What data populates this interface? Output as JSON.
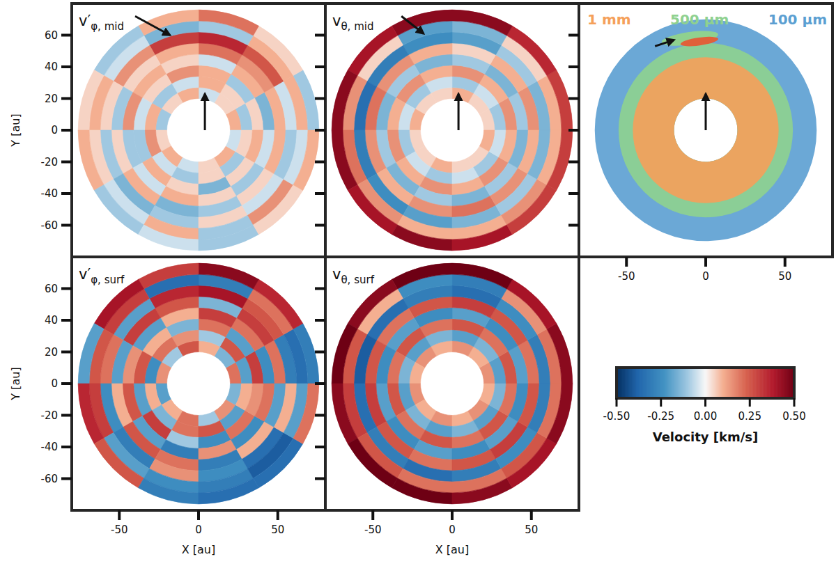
{
  "chart_data": [
    {
      "type": "polar_heatmap",
      "title": "v′",
      "title_subscript": "φ, mid",
      "xlim": [
        -80,
        80
      ],
      "ylim": [
        -80,
        80
      ],
      "xticks": [],
      "yticks": [
        -60,
        -40,
        -20,
        0,
        20,
        40,
        60
      ],
      "tick_labels": "y",
      "ylabel": "Y [au]",
      "r_edges": [
        20,
        27,
        34,
        41,
        48,
        55,
        62,
        69,
        76
      ],
      "theta_edges": [
        0,
        30,
        60,
        90,
        120,
        150,
        180,
        210,
        240,
        270,
        300,
        330,
        360
      ],
      "cells": [
        [
          0.1,
          0.05,
          -0.05,
          0.1,
          0.05,
          -0.1,
          0.05,
          0.1,
          -0.05,
          0.05,
          0.1,
          -0.05
        ],
        [
          -0.1,
          0.05,
          0.1,
          -0.05,
          -0.1,
          0.1,
          0.15,
          -0.05,
          -0.1,
          0.05,
          -0.1,
          0.05
        ],
        [
          0.05,
          -0.1,
          0.1,
          0.15,
          0.05,
          -0.05,
          -0.1,
          0.1,
          0.05,
          -0.15,
          0.05,
          0.1
        ],
        [
          -0.15,
          0.1,
          -0.05,
          0.05,
          0.1,
          0.15,
          -0.1,
          -0.05,
          0.1,
          0.05,
          -0.1,
          -0.05
        ],
        [
          0.1,
          0.15,
          0.2,
          0.1,
          0.05,
          -0.1,
          0.05,
          0.1,
          -0.15,
          -0.1,
          0.05,
          0.1
        ],
        [
          -0.05,
          0.25,
          0.35,
          0.3,
          0.15,
          0.05,
          -0.1,
          -0.15,
          -0.1,
          0.05,
          -0.05,
          -0.1
        ],
        [
          0.1,
          0.1,
          -0.1,
          -0.15,
          -0.05,
          0.1,
          0.05,
          -0.05,
          0.1,
          -0.1,
          0.15,
          -0.05
        ],
        [
          -0.1,
          0.05,
          0.2,
          0.1,
          -0.1,
          0.05,
          0.1,
          -0.1,
          -0.05,
          -0.1,
          0.05,
          0.1
        ]
      ],
      "arrows": [
        {
          "from": [
            -40,
            72
          ],
          "to": [
            -18,
            60
          ]
        },
        {
          "from": [
            4,
            0
          ],
          "to": [
            4,
            23
          ]
        }
      ]
    },
    {
      "type": "polar_heatmap",
      "title": "v",
      "title_subscript": "θ, mid",
      "xlim": [
        -80,
        80
      ],
      "ylim": [
        -80,
        80
      ],
      "xticks": [],
      "yticks": [
        -60,
        -40,
        -20,
        0,
        20,
        40,
        60
      ],
      "tick_labels": false,
      "r_edges": [
        20,
        27,
        34,
        41,
        48,
        55,
        62,
        69,
        76
      ],
      "theta_edges": [
        0,
        30,
        60,
        90,
        120,
        150,
        180,
        210,
        240,
        270,
        300,
        330,
        360
      ],
      "cells": [
        [
          0.05,
          0.05,
          0.1,
          0.05,
          0.05,
          0.1,
          0.05,
          0.05,
          0.1,
          0.05,
          0.05,
          0.1
        ],
        [
          -0.1,
          -0.05,
          -0.1,
          -0.05,
          -0.1,
          -0.05,
          -0.1,
          -0.05,
          -0.1,
          -0.05,
          -0.1,
          -0.05
        ],
        [
          0.15,
          0.1,
          0.15,
          0.1,
          0.15,
          0.1,
          0.15,
          0.1,
          0.15,
          0.1,
          0.15,
          0.1
        ],
        [
          -0.1,
          -0.15,
          -0.1,
          -0.15,
          -0.1,
          -0.15,
          -0.1,
          -0.15,
          -0.1,
          -0.15,
          -0.1,
          -0.15
        ],
        [
          0.15,
          0.1,
          0.05,
          0.1,
          0.15,
          0.2,
          0.15,
          0.1,
          0.15,
          0.2,
          0.15,
          0.1
        ],
        [
          -0.15,
          -0.1,
          -0.2,
          -0.25,
          -0.3,
          -0.35,
          -0.3,
          -0.25,
          -0.2,
          -0.15,
          -0.1,
          -0.15
        ],
        [
          0.1,
          0.05,
          -0.15,
          -0.2,
          0.05,
          0.15,
          0.2,
          0.15,
          0.1,
          0.1,
          0.15,
          0.1
        ],
        [
          0.3,
          0.35,
          0.45,
          0.45,
          0.4,
          0.45,
          0.45,
          0.4,
          0.45,
          0.4,
          0.3,
          0.3
        ]
      ],
      "arrows": [
        {
          "from": [
            -32,
            72
          ],
          "to": [
            -18,
            61
          ]
        },
        {
          "from": [
            4,
            0
          ],
          "to": [
            4,
            23
          ]
        }
      ]
    },
    {
      "type": "particles",
      "xlim": [
        -80,
        80
      ],
      "ylim": [
        -80,
        80
      ],
      "xticks": [
        -50,
        0,
        50
      ],
      "yticks": [
        -60,
        -40,
        -20,
        0,
        20,
        40,
        60
      ],
      "tick_labels": "x",
      "series": [
        {
          "name": "1 mm",
          "color": "#f5a05a",
          "r_range": [
            20,
            46
          ],
          "clump": {
            "x": -4,
            "y": 56,
            "rx": 12,
            "ry": 2.5
          }
        },
        {
          "name": "500 μm",
          "color": "#8fd18f",
          "r_range": [
            20,
            55
          ],
          "clump": {
            "x": -10,
            "y": 58,
            "rx": 18,
            "ry": 4
          }
        },
        {
          "name": "100 μm",
          "color": "#5b9fd2",
          "r_range": [
            20,
            70
          ]
        }
      ],
      "arrows": [
        {
          "from": [
            -32,
            53
          ],
          "to": [
            -20,
            57
          ]
        },
        {
          "from": [
            0,
            0
          ],
          "to": [
            0,
            23
          ]
        }
      ]
    },
    {
      "type": "polar_heatmap",
      "title": "v′",
      "title_subscript": "φ, surf",
      "xlim": [
        -80,
        80
      ],
      "ylim": [
        -80,
        80
      ],
      "xticks": [
        -50,
        0,
        50
      ],
      "yticks": [
        -60,
        -40,
        -20,
        0,
        20,
        40,
        60
      ],
      "tick_labels": true,
      "xlabel": "X [au]",
      "ylabel": "Y [au]",
      "r_edges": [
        20,
        27,
        34,
        41,
        48,
        55,
        62,
        69,
        76
      ],
      "theta_edges": [
        0,
        30,
        60,
        90,
        120,
        150,
        180,
        210,
        240,
        270,
        300,
        330,
        360
      ],
      "cells": [
        [
          0.2,
          -0.15,
          0.1,
          0.25,
          -0.1,
          0.15,
          -0.2,
          0.1,
          0.2,
          -0.1,
          0.15,
          -0.15
        ],
        [
          -0.2,
          0.25,
          -0.1,
          0.15,
          0.2,
          -0.25,
          0.1,
          -0.15,
          0.2,
          0.25,
          -0.2,
          0.1
        ],
        [
          0.3,
          -0.2,
          0.2,
          -0.15,
          0.1,
          0.25,
          -0.2,
          0.3,
          -0.1,
          -0.25,
          0.2,
          0.15
        ],
        [
          -0.25,
          0.2,
          0.3,
          0.1,
          -0.2,
          0.15,
          0.25,
          -0.2,
          -0.3,
          0.15,
          -0.25,
          0.2
        ],
        [
          0.2,
          0.3,
          -0.15,
          0.25,
          0.3,
          -0.2,
          0.1,
          0.25,
          0.2,
          -0.3,
          0.1,
          -0.2
        ],
        [
          -0.3,
          0.25,
          0.4,
          0.35,
          -0.2,
          0.2,
          -0.25,
          -0.3,
          0.15,
          -0.25,
          -0.35,
          0.1
        ],
        [
          -0.35,
          0.2,
          -0.3,
          -0.35,
          0.3,
          0.25,
          0.3,
          -0.2,
          -0.25,
          -0.3,
          -0.4,
          -0.2
        ],
        [
          -0.3,
          0.35,
          0.45,
          0.3,
          0.4,
          -0.2,
          0.35,
          0.25,
          -0.3,
          -0.35,
          -0.35,
          0.2
        ]
      ]
    },
    {
      "type": "polar_heatmap",
      "title": "v",
      "title_subscript": "θ, surf",
      "xlim": [
        -80,
        80
      ],
      "ylim": [
        -80,
        80
      ],
      "xticks": [
        -50,
        0,
        50
      ],
      "yticks": [
        -60,
        -40,
        -20,
        0,
        20,
        40,
        60
      ],
      "tick_labels": "x",
      "xlabel": "X [au]",
      "r_edges": [
        20,
        27,
        34,
        41,
        48,
        55,
        62,
        69,
        76
      ],
      "theta_edges": [
        0,
        30,
        60,
        90,
        120,
        150,
        180,
        210,
        240,
        270,
        300,
        330,
        360
      ],
      "cells": [
        [
          0.15,
          0.1,
          0.15,
          0.1,
          0.15,
          0.1,
          0.15,
          0.1,
          0.15,
          0.1,
          0.15,
          0.1
        ],
        [
          -0.2,
          -0.15,
          -0.2,
          -0.15,
          -0.2,
          -0.15,
          -0.2,
          -0.15,
          -0.2,
          -0.15,
          -0.2,
          -0.15
        ],
        [
          0.25,
          0.2,
          0.25,
          0.2,
          0.25,
          0.2,
          0.25,
          0.2,
          0.25,
          0.2,
          0.25,
          0.2
        ],
        [
          -0.2,
          -0.25,
          -0.2,
          -0.25,
          -0.2,
          -0.25,
          -0.2,
          -0.25,
          -0.2,
          -0.25,
          -0.2,
          -0.25
        ],
        [
          0.2,
          0.25,
          0.3,
          0.25,
          0.2,
          0.25,
          0.3,
          0.25,
          0.2,
          0.25,
          0.3,
          0.25
        ],
        [
          -0.3,
          -0.25,
          -0.35,
          -0.3,
          -0.35,
          -0.4,
          -0.35,
          -0.3,
          -0.35,
          -0.3,
          -0.25,
          -0.3
        ],
        [
          0.2,
          0.15,
          -0.3,
          -0.25,
          0.1,
          0.25,
          0.3,
          0.25,
          0.2,
          0.2,
          0.25,
          0.2
        ],
        [
          0.45,
          0.4,
          0.5,
          0.5,
          0.45,
          0.5,
          0.45,
          0.5,
          0.5,
          0.45,
          0.4,
          0.45
        ]
      ]
    }
  ],
  "colorbar": {
    "label": "Velocity [km/s]",
    "range": [
      -0.5,
      0.5
    ],
    "ticks": [
      {
        "value": -0.5,
        "label": "-0.50"
      },
      {
        "value": -0.25,
        "label": "-0.25"
      },
      {
        "value": 0,
        "label": "0.00"
      },
      {
        "value": 0.25,
        "label": "0.25"
      },
      {
        "value": 0.5,
        "label": "0.50"
      }
    ]
  }
}
